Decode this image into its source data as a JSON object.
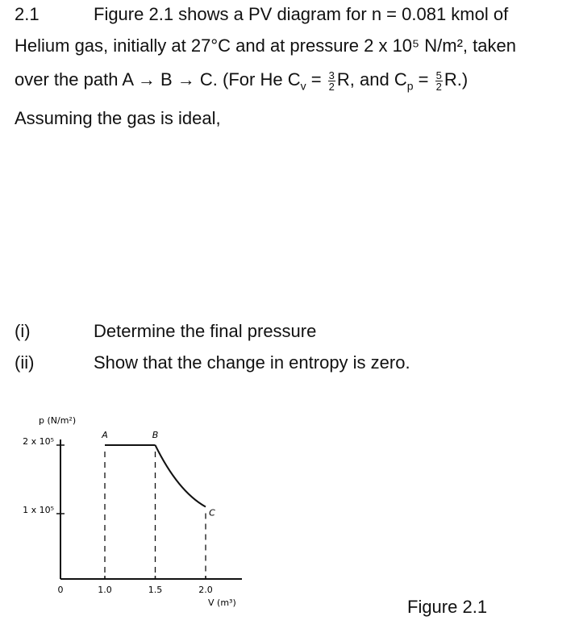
{
  "problem": {
    "number": "2.1",
    "line1": "Figure 2.1 shows a PV diagram for n = 0.081 kmol of",
    "line2": "Helium gas, initially at 27°C and at pressure 2 x 10⁵ N/m², taken",
    "line3": {
      "a": "over the path A → B → C. (For He C",
      "sub1": "v",
      "eq1": " = ",
      "num1": "3",
      "den1": "2",
      "b": "R, and C",
      "sub2": "p",
      "eq2": " = ",
      "num2": "5",
      "den2": "2",
      "c": "R.)"
    },
    "line4": "Assuming the gas is ideal,",
    "questions": [
      {
        "label": "(i)",
        "text": "Determine the final pressure"
      },
      {
        "label": "(ii)",
        "text": "Show that the change in entropy is zero."
      }
    ]
  },
  "figure": {
    "y_axis_label": "p (N/m²)",
    "x_axis_label": "V (m³)",
    "yticks": [
      {
        "value": 200000,
        "label": "2 x 10⁵"
      },
      {
        "value": 100000,
        "label": "1 x 10⁵"
      }
    ],
    "xticks": [
      {
        "value": 0,
        "label": "0"
      },
      {
        "value": 1.0,
        "label": "1.0"
      },
      1.5,
      {
        "value": 2.0,
        "label": "2.0"
      }
    ],
    "points": [
      {
        "label": "A",
        "x": 1.0,
        "y": 200000
      },
      {
        "label": "B",
        "x": 1.5,
        "y": 200000
      },
      {
        "label": "C",
        "x": 2.0,
        "y": 110000
      }
    ],
    "caption": "Figure 2.1"
  }
}
